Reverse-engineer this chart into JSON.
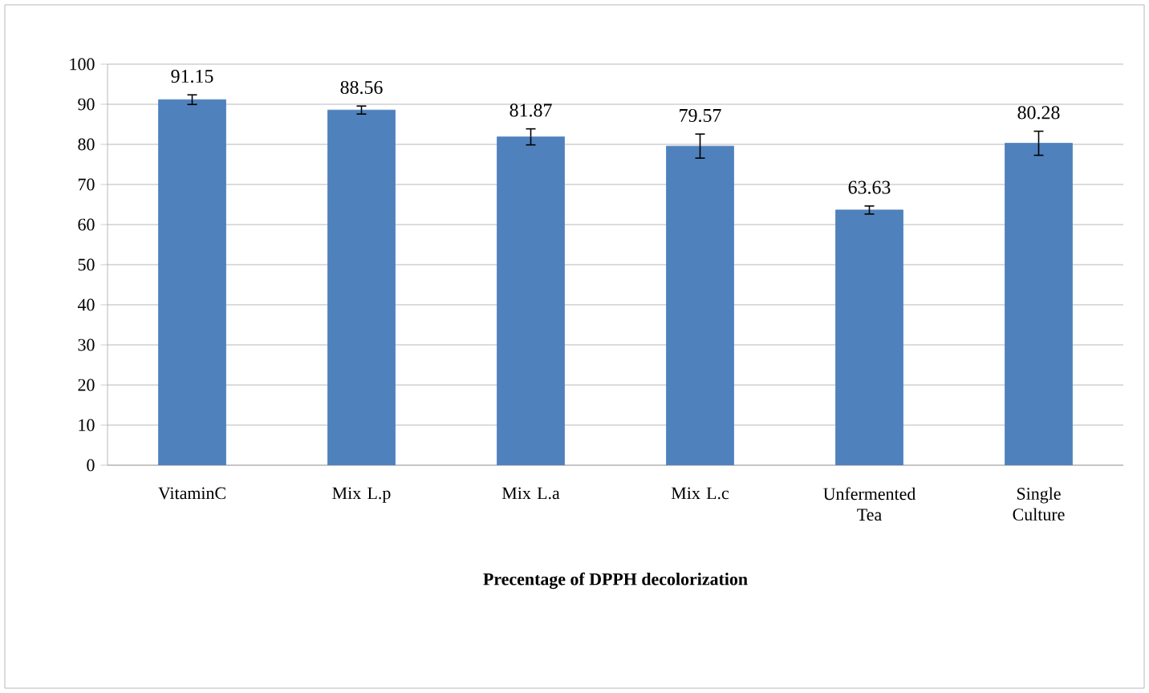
{
  "chart_data": {
    "type": "bar",
    "xlabel": "Precentage of DPPH  decolorization",
    "categories": [
      "VitaminC",
      "Mix L.p",
      "Mix L.a",
      "Mix L.c",
      "Unfermented Tea",
      "Single Culture"
    ],
    "values": [
      91.15,
      88.56,
      81.87,
      79.57,
      63.63,
      80.28
    ],
    "errors": [
      1.2,
      1,
      2,
      3,
      1,
      3
    ],
    "color": "#4f81bd",
    "ylim": [
      0,
      100
    ],
    "yticks": [
      0,
      10,
      20,
      30,
      40,
      50,
      60,
      70,
      80,
      90,
      100
    ],
    "grid": "y",
    "data_labels": true
  }
}
